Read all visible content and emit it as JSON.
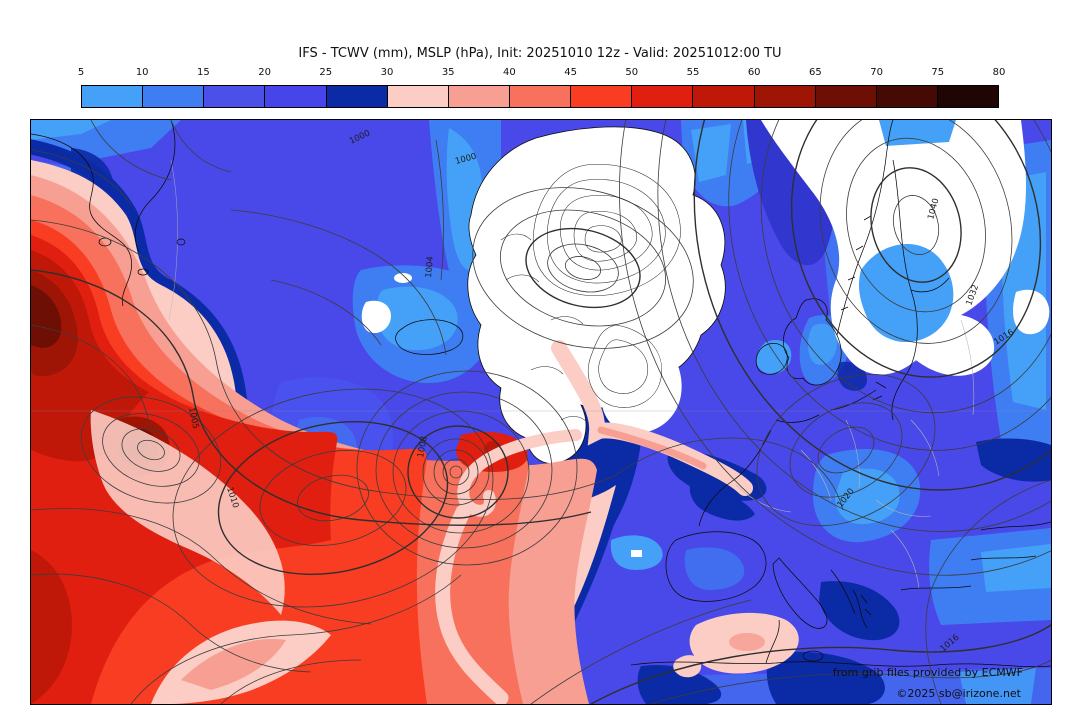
{
  "title": "IFS - TCWV (mm), MSLP (hPa), Init: 20251010 12z - Valid: 20251012:00 TU",
  "colorbar": {
    "ticks": [
      "5",
      "10",
      "15",
      "20",
      "25",
      "30",
      "35",
      "40",
      "45",
      "50",
      "55",
      "60",
      "65",
      "70",
      "75",
      "80"
    ],
    "colors": [
      "#44a1f7",
      "#3f7ef2",
      "#4a50e8",
      "#4645e9",
      "#0b2aa5",
      "#fbcdc5",
      "#f79f93",
      "#f8715c",
      "#f93d22",
      "#e01f10",
      "#c01808",
      "#9e1505",
      "#6d0f05",
      "#460a04",
      "#1f0503"
    ]
  },
  "map": {
    "attribution_line1": "from grib files provided by ECMWF",
    "attribution_line2": "©2025 sb@irizone.net",
    "labels": [
      "1000",
      "1000",
      "1004",
      "1008",
      "1005",
      "1010",
      "1016",
      "1016",
      "1020",
      "1032",
      "1040"
    ]
  },
  "chart_data": {
    "type": "heatmap",
    "title": "IFS - TCWV (mm), MSLP (hPa), Init: 20251010 12z - Valid: 20251012:00 TU",
    "variable_shaded": "Total Column Water Vapour (mm)",
    "variable_contours": "Mean Sea Level Pressure (hPa)",
    "model": "IFS",
    "init": "20251010 12z",
    "valid": "20251012:00 TU",
    "colorbar_ticks": [
      5,
      10,
      15,
      20,
      25,
      30,
      35,
      40,
      45,
      50,
      55,
      60,
      65,
      70,
      75,
      80
    ],
    "colorbar_colors": [
      "#44a1f7",
      "#3f7ef2",
      "#4a50e8",
      "#4645e9",
      "#0b2aa5",
      "#fbcdc5",
      "#f79f93",
      "#f8715c",
      "#f93d22",
      "#e01f10",
      "#c01808",
      "#9e1505",
      "#6d0f05",
      "#460a04",
      "#1f0503"
    ],
    "mslp_labels_visible": [
      1000,
      1004,
      1005,
      1008,
      1010,
      1016,
      1020,
      1032,
      1040
    ],
    "features": [
      {
        "name": "moist plume >30-60mm",
        "location": "west Atlantic / left third of map",
        "fill": "reds"
      },
      {
        "name": "dry air <5mm",
        "location": "Greenland and Scandinavia high",
        "fill": "white"
      },
      {
        "name": "cyclone with spiral moisture band ~1008 hPa",
        "location": "mid-Atlantic"
      },
      {
        "name": "frontal moisture band 30-40mm",
        "location": "Iceland toward Brittany and south to Iberia"
      },
      {
        "name": "moist patch 30-40mm",
        "location": "western Mediterranean"
      }
    ]
  }
}
